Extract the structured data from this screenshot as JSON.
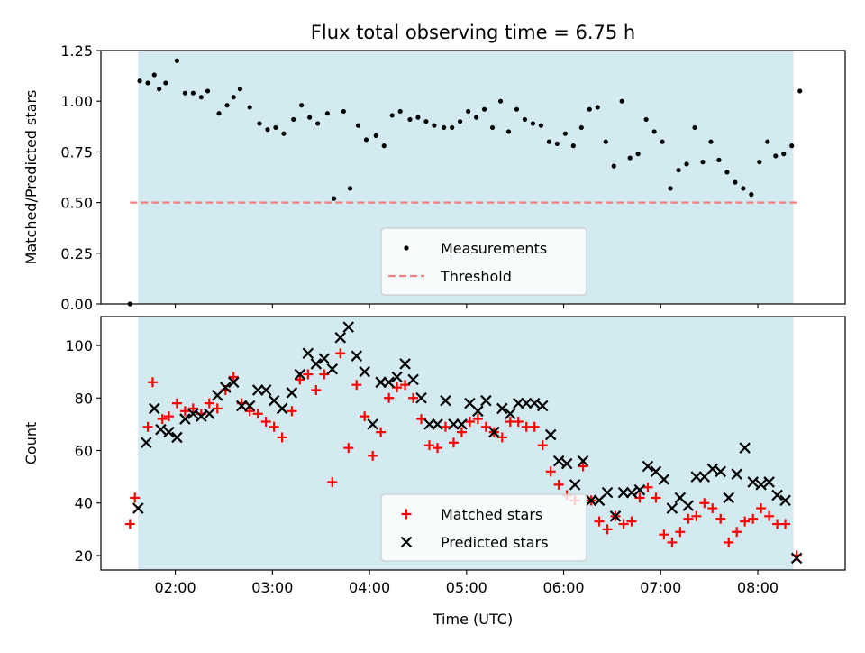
{
  "title": "Flux total observing time = 6.75 h",
  "chart_data": [
    {
      "type": "scatter",
      "ylabel": "Matched/Predicted stars",
      "xlabel": "",
      "xlim": [
        "01:14",
        "08:54"
      ],
      "ylim": [
        0,
        1.25
      ],
      "yticks": [
        0,
        0.25,
        0.5,
        0.75,
        1.0,
        1.25
      ],
      "ytick_labels": [
        "0.00",
        "0.25",
        "0.50",
        "0.75",
        "1.00",
        "1.25"
      ],
      "observing_span": [
        "01:37",
        "08:22"
      ],
      "shade_color": "#d3eaf0",
      "legend_location": "lower center",
      "series": [
        {
          "name": "Measurements",
          "marker": "dot",
          "color": "#000000",
          "points": [
            [
              "01:32",
              0.0
            ],
            [
              "01:38",
              1.1
            ],
            [
              "01:43",
              1.09
            ],
            [
              "01:47",
              1.13
            ],
            [
              "01:50",
              1.06
            ],
            [
              "01:54",
              1.09
            ],
            [
              "02:01",
              1.2
            ],
            [
              "02:06",
              1.04
            ],
            [
              "02:11",
              1.04
            ],
            [
              "02:16",
              1.02
            ],
            [
              "02:20",
              1.05
            ],
            [
              "02:27",
              0.94
            ],
            [
              "02:32",
              0.98
            ],
            [
              "02:36",
              1.02
            ],
            [
              "02:40",
              1.06
            ],
            [
              "02:46",
              0.97
            ],
            [
              "02:52",
              0.89
            ],
            [
              "02:57",
              0.86
            ],
            [
              "03:02",
              0.87
            ],
            [
              "03:07",
              0.84
            ],
            [
              "03:13",
              0.91
            ],
            [
              "03:18",
              0.98
            ],
            [
              "03:23",
              0.92
            ],
            [
              "03:28",
              0.89
            ],
            [
              "03:34",
              0.94
            ],
            [
              "03:38",
              0.52
            ],
            [
              "03:44",
              0.95
            ],
            [
              "03:48",
              0.57
            ],
            [
              "03:53",
              0.88
            ],
            [
              "03:58",
              0.81
            ],
            [
              "04:04",
              0.83
            ],
            [
              "04:09",
              0.78
            ],
            [
              "04:14",
              0.93
            ],
            [
              "04:19",
              0.95
            ],
            [
              "04:25",
              0.91
            ],
            [
              "04:30",
              0.92
            ],
            [
              "04:35",
              0.9
            ],
            [
              "04:40",
              0.88
            ],
            [
              "04:46",
              0.87
            ],
            [
              "04:51",
              0.87
            ],
            [
              "04:56",
              0.9
            ],
            [
              "05:01",
              0.95
            ],
            [
              "05:06",
              0.92
            ],
            [
              "05:11",
              0.96
            ],
            [
              "05:16",
              0.87
            ],
            [
              "05:21",
              1.0
            ],
            [
              "05:26",
              0.85
            ],
            [
              "05:31",
              0.96
            ],
            [
              "05:36",
              0.91
            ],
            [
              "05:41",
              0.89
            ],
            [
              "05:46",
              0.88
            ],
            [
              "05:51",
              0.8
            ],
            [
              "05:56",
              0.79
            ],
            [
              "06:01",
              0.84
            ],
            [
              "06:06",
              0.78
            ],
            [
              "06:11",
              0.87
            ],
            [
              "06:16",
              0.96
            ],
            [
              "06:21",
              0.97
            ],
            [
              "06:26",
              0.8
            ],
            [
              "06:31",
              0.68
            ],
            [
              "06:36",
              1.0
            ],
            [
              "06:41",
              0.72
            ],
            [
              "06:46",
              0.74
            ],
            [
              "06:51",
              0.91
            ],
            [
              "06:56",
              0.85
            ],
            [
              "07:01",
              0.8
            ],
            [
              "07:06",
              0.57
            ],
            [
              "07:11",
              0.66
            ],
            [
              "07:16",
              0.69
            ],
            [
              "07:21",
              0.87
            ],
            [
              "07:26",
              0.7
            ],
            [
              "07:31",
              0.8
            ],
            [
              "07:36",
              0.71
            ],
            [
              "07:41",
              0.65
            ],
            [
              "07:46",
              0.6
            ],
            [
              "07:51",
              0.57
            ],
            [
              "07:56",
              0.54
            ],
            [
              "08:01",
              0.7
            ],
            [
              "08:06",
              0.8
            ],
            [
              "08:11",
              0.73
            ],
            [
              "08:16",
              0.74
            ],
            [
              "08:21",
              0.78
            ],
            [
              "08:26",
              1.05
            ]
          ]
        },
        {
          "name": "Threshold",
          "type": "hline",
          "style": "dashed",
          "color": "#f08080",
          "y": 0.5,
          "x_range": [
            "01:32",
            "08:26"
          ]
        }
      ]
    },
    {
      "type": "scatter",
      "ylabel": "Count",
      "xlabel": "Time (UTC)",
      "xlim": [
        "01:14",
        "08:54"
      ],
      "ylim": [
        14.5,
        111
      ],
      "yticks": [
        20,
        40,
        60,
        80,
        100
      ],
      "ytick_labels": [
        "20",
        "40",
        "60",
        "80",
        "100"
      ],
      "xticks": [
        "02:00",
        "03:00",
        "04:00",
        "05:00",
        "06:00",
        "07:00",
        "08:00"
      ],
      "observing_span": [
        "01:37",
        "08:22"
      ],
      "shade_color": "#d3eaf0",
      "legend_location": "lower center",
      "series": [
        {
          "name": "Matched stars",
          "marker": "plus",
          "color": "#ff0000",
          "points": [
            [
              "01:32",
              32
            ],
            [
              "01:35",
              42
            ],
            [
              "01:43",
              69
            ],
            [
              "01:46",
              86
            ],
            [
              "01:52",
              72
            ],
            [
              "01:56",
              73
            ],
            [
              "02:01",
              78
            ],
            [
              "02:06",
              75
            ],
            [
              "02:11",
              76
            ],
            [
              "02:16",
              74
            ],
            [
              "02:21",
              78
            ],
            [
              "02:26",
              76
            ],
            [
              "02:31",
              83
            ],
            [
              "02:36",
              88
            ],
            [
              "02:41",
              78
            ],
            [
              "02:46",
              75
            ],
            [
              "02:51",
              74
            ],
            [
              "02:56",
              71
            ],
            [
              "03:01",
              69
            ],
            [
              "03:06",
              65
            ],
            [
              "03:12",
              75
            ],
            [
              "03:17",
              87
            ],
            [
              "03:22",
              89
            ],
            [
              "03:27",
              83
            ],
            [
              "03:32",
              89
            ],
            [
              "03:37",
              48
            ],
            [
              "03:42",
              97
            ],
            [
              "03:47",
              61
            ],
            [
              "03:52",
              85
            ],
            [
              "03:57",
              73
            ],
            [
              "04:02",
              58
            ],
            [
              "04:07",
              67
            ],
            [
              "04:12",
              80
            ],
            [
              "04:17",
              84
            ],
            [
              "04:22",
              85
            ],
            [
              "04:27",
              80
            ],
            [
              "04:32",
              72
            ],
            [
              "04:37",
              62
            ],
            [
              "04:42",
              61
            ],
            [
              "04:47",
              69
            ],
            [
              "04:52",
              63
            ],
            [
              "04:57",
              67
            ],
            [
              "05:02",
              71
            ],
            [
              "05:07",
              72
            ],
            [
              "05:12",
              69
            ],
            [
              "05:17",
              67
            ],
            [
              "05:22",
              65
            ],
            [
              "05:27",
              71
            ],
            [
              "05:32",
              71
            ],
            [
              "05:37",
              69
            ],
            [
              "05:42",
              69
            ],
            [
              "05:47",
              62
            ],
            [
              "05:52",
              52
            ],
            [
              "05:57",
              47
            ],
            [
              "06:02",
              43
            ],
            [
              "06:07",
              41
            ],
            [
              "06:12",
              54
            ],
            [
              "06:17",
              41
            ],
            [
              "06:22",
              33
            ],
            [
              "06:27",
              30
            ],
            [
              "06:32",
              35
            ],
            [
              "06:37",
              32
            ],
            [
              "06:42",
              33
            ],
            [
              "06:47",
              42
            ],
            [
              "06:52",
              46
            ],
            [
              "06:57",
              42
            ],
            [
              "07:02",
              28
            ],
            [
              "07:07",
              25
            ],
            [
              "07:12",
              29
            ],
            [
              "07:17",
              34
            ],
            [
              "07:22",
              35
            ],
            [
              "07:27",
              40
            ],
            [
              "07:32",
              38
            ],
            [
              "07:37",
              34
            ],
            [
              "07:42",
              25
            ],
            [
              "07:47",
              29
            ],
            [
              "07:52",
              33
            ],
            [
              "07:57",
              34
            ],
            [
              "08:02",
              38
            ],
            [
              "08:07",
              35
            ],
            [
              "08:12",
              32
            ],
            [
              "08:17",
              32
            ],
            [
              "08:24",
              20
            ]
          ]
        },
        {
          "name": "Predicted stars",
          "marker": "x",
          "color": "#000000",
          "points": [
            [
              "01:37",
              38
            ],
            [
              "01:42",
              63
            ],
            [
              "01:47",
              76
            ],
            [
              "01:51",
              68
            ],
            [
              "01:56",
              67
            ],
            [
              "02:01",
              65
            ],
            [
              "02:06",
              72
            ],
            [
              "02:11",
              74
            ],
            [
              "02:16",
              73
            ],
            [
              "02:21",
              74
            ],
            [
              "02:26",
              81
            ],
            [
              "02:31",
              84
            ],
            [
              "02:36",
              86
            ],
            [
              "02:41",
              77
            ],
            [
              "02:46",
              77
            ],
            [
              "02:51",
              83
            ],
            [
              "02:56",
              83
            ],
            [
              "03:01",
              79
            ],
            [
              "03:06",
              76
            ],
            [
              "03:12",
              82
            ],
            [
              "03:17",
              89
            ],
            [
              "03:22",
              97
            ],
            [
              "03:27",
              93
            ],
            [
              "03:32",
              95
            ],
            [
              "03:37",
              91
            ],
            [
              "03:42",
              103
            ],
            [
              "03:47",
              107
            ],
            [
              "03:52",
              96
            ],
            [
              "03:57",
              90
            ],
            [
              "04:02",
              70
            ],
            [
              "04:07",
              86
            ],
            [
              "04:12",
              86
            ],
            [
              "04:17",
              88
            ],
            [
              "04:22",
              93
            ],
            [
              "04:27",
              87
            ],
            [
              "04:32",
              80
            ],
            [
              "04:37",
              70
            ],
            [
              "04:42",
              70
            ],
            [
              "04:47",
              79
            ],
            [
              "04:52",
              70
            ],
            [
              "04:57",
              70
            ],
            [
              "05:02",
              78
            ],
            [
              "05:07",
              75
            ],
            [
              "05:12",
              79
            ],
            [
              "05:17",
              67
            ],
            [
              "05:22",
              76
            ],
            [
              "05:27",
              74
            ],
            [
              "05:32",
              78
            ],
            [
              "05:37",
              78
            ],
            [
              "05:42",
              78
            ],
            [
              "05:47",
              77
            ],
            [
              "05:52",
              66
            ],
            [
              "05:57",
              56
            ],
            [
              "06:02",
              55
            ],
            [
              "06:07",
              47
            ],
            [
              "06:12",
              56
            ],
            [
              "06:17",
              41
            ],
            [
              "06:22",
              41
            ],
            [
              "06:27",
              44
            ],
            [
              "06:32",
              35
            ],
            [
              "06:37",
              44
            ],
            [
              "06:42",
              44
            ],
            [
              "06:47",
              45
            ],
            [
              "06:52",
              54
            ],
            [
              "06:57",
              52
            ],
            [
              "07:02",
              49
            ],
            [
              "07:07",
              38
            ],
            [
              "07:12",
              42
            ],
            [
              "07:17",
              39
            ],
            [
              "07:22",
              50
            ],
            [
              "07:27",
              50
            ],
            [
              "07:32",
              53
            ],
            [
              "07:37",
              52
            ],
            [
              "07:42",
              42
            ],
            [
              "07:47",
              51
            ],
            [
              "07:52",
              61
            ],
            [
              "07:57",
              48
            ],
            [
              "08:02",
              47
            ],
            [
              "08:07",
              48
            ],
            [
              "08:12",
              43
            ],
            [
              "08:17",
              41
            ],
            [
              "08:24",
              19
            ]
          ]
        }
      ]
    }
  ]
}
